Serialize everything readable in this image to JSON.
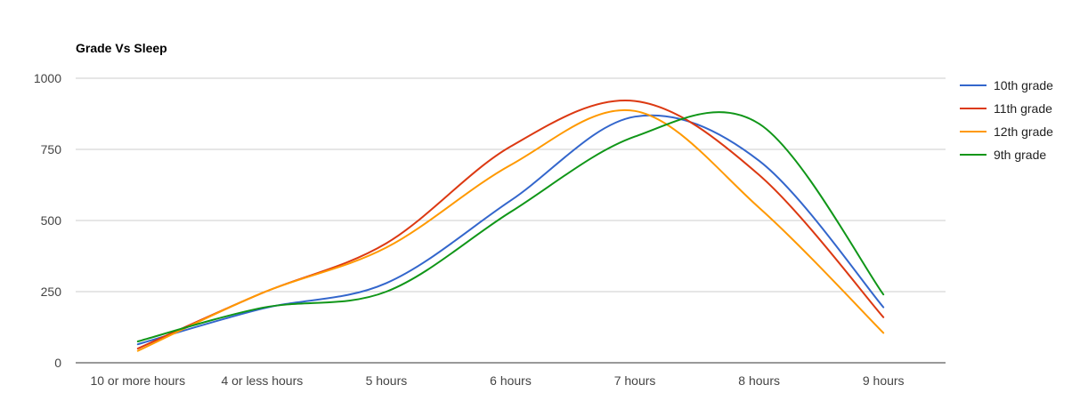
{
  "chart_data": {
    "type": "line",
    "title": "Grade Vs Sleep",
    "xlabel": "",
    "ylabel": "",
    "categories": [
      "10 or more hours",
      "4 or less hours",
      "5 hours",
      "6 hours",
      "7 hours",
      "8 hours",
      "9 hours"
    ],
    "ylim": [
      0,
      1000
    ],
    "yticks": [
      0,
      250,
      500,
      750,
      1000
    ],
    "grid": true,
    "legend_position": "right",
    "series": [
      {
        "name": "10th grade",
        "color": "#3366cc",
        "values": [
          65,
          190,
          280,
          570,
          865,
          710,
          195
        ]
      },
      {
        "name": "11th grade",
        "color": "#dc3912",
        "values": [
          50,
          245,
          420,
          760,
          920,
          660,
          160
        ]
      },
      {
        "name": "12th grade",
        "color": "#ff9900",
        "values": [
          42,
          245,
          405,
          695,
          885,
          545,
          105
        ]
      },
      {
        "name": "9th grade",
        "color": "#109618",
        "values": [
          75,
          193,
          250,
          530,
          795,
          840,
          240
        ]
      }
    ]
  }
}
